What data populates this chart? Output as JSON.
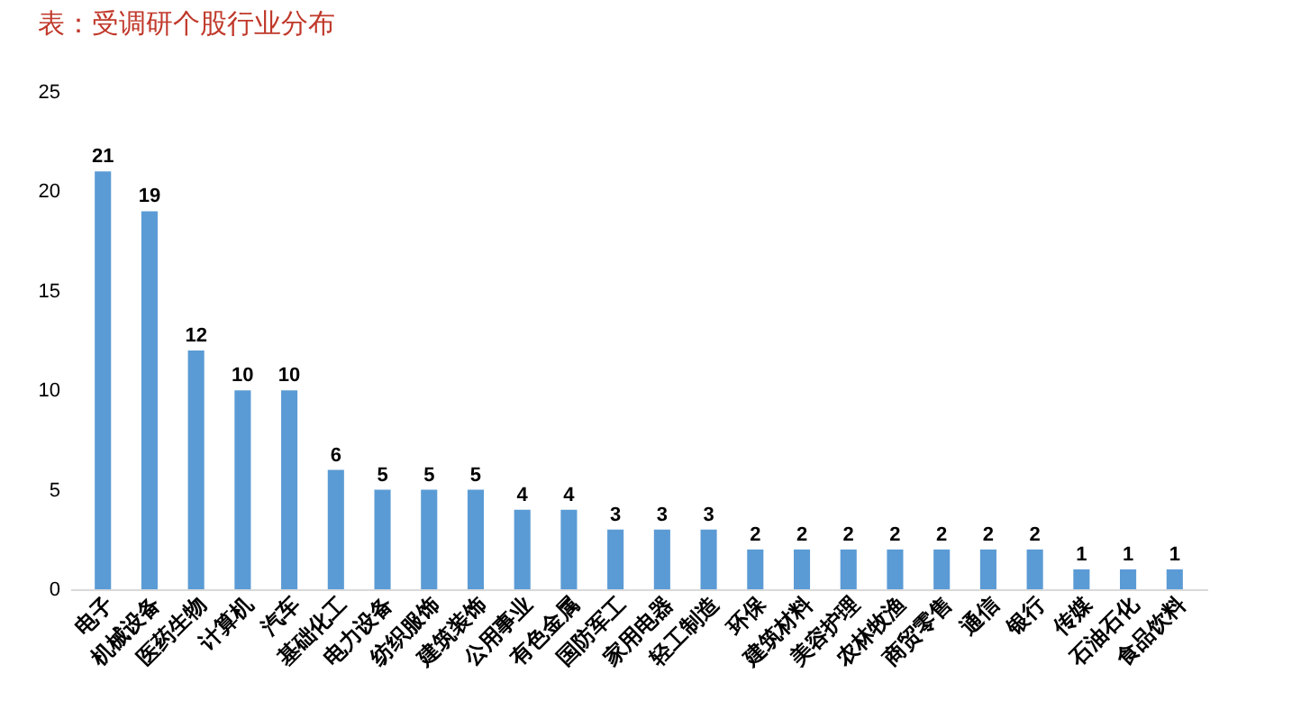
{
  "chart_data": {
    "type": "bar",
    "title": "表：受调研个股行业分布",
    "categories": [
      "电子",
      "机械设备",
      "医药生物",
      "计算机",
      "汽车",
      "基础化工",
      "电力设备",
      "纺织服饰",
      "建筑装饰",
      "公用事业",
      "有色金属",
      "国防军工",
      "家用电器",
      "轻工制造",
      "环保",
      "建筑材料",
      "美容护理",
      "农林牧渔",
      "商贸零售",
      "通信",
      "银行",
      "传媒",
      "石油石化",
      "食品饮料"
    ],
    "values": [
      21,
      19,
      12,
      10,
      10,
      6,
      5,
      5,
      5,
      4,
      4,
      3,
      3,
      3,
      2,
      2,
      2,
      2,
      2,
      2,
      2,
      1,
      1,
      1
    ],
    "color": "#5b9bd5",
    "ylim": [
      0,
      25
    ],
    "yticks": [
      0,
      5,
      10,
      15,
      20,
      25
    ],
    "grid": false,
    "data_labels": true
  }
}
